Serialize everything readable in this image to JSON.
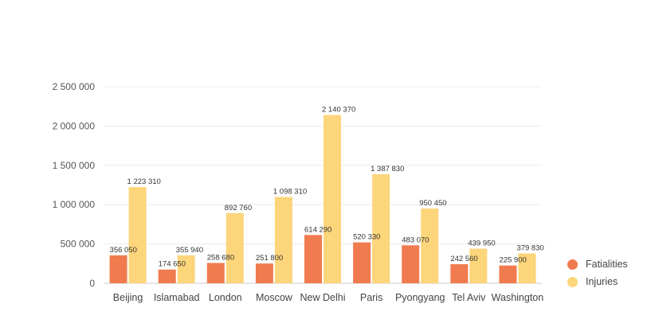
{
  "chart_data": {
    "type": "bar",
    "categories": [
      "Beijing",
      "Islamabad",
      "London",
      "Moscow",
      "New Delhi",
      "Paris",
      "Pyongyang",
      "Tel Aviv",
      "Washington"
    ],
    "series": [
      {
        "name": "Fatialities",
        "color": "#f07b4f",
        "values": [
          356050,
          174650,
          258680,
          251800,
          614290,
          520330,
          483070,
          242560,
          225900
        ],
        "labels": [
          "356 050",
          "174 650",
          "258 680",
          "251 800",
          "614 290",
          "520 330",
          "483 070",
          "242 560",
          "225 900"
        ]
      },
      {
        "name": "Injuries",
        "color": "#fdd57a",
        "values": [
          1223310,
          355940,
          892760,
          1098310,
          2140370,
          1387830,
          950450,
          439950,
          379830
        ],
        "labels": [
          "1 223 310",
          "355 940",
          "892 760",
          "1 098 310",
          "2 140 370",
          "1 387 830",
          "950 450",
          "439 950",
          "379 830"
        ]
      }
    ],
    "y_ticks": [
      0,
      500000,
      1000000,
      1500000,
      2000000,
      2500000
    ],
    "y_tick_labels": [
      "0",
      "500 000",
      "1 000 000",
      "1 500 000",
      "2 000 000",
      "2 500 000"
    ],
    "ylim": [
      0,
      2500000
    ],
    "grid": true,
    "legend_position": "right-bottom"
  }
}
